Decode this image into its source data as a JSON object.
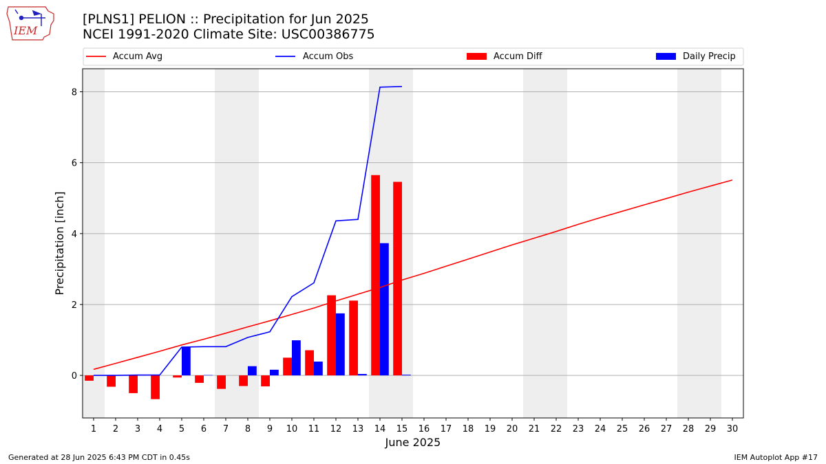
{
  "header": {
    "logo_text": "IEM",
    "title_line1": "[PLNS1] PELION :: Precipitation for Jun 2025",
    "title_line2": "NCEI 1991-2020 Climate Site: USC00386775"
  },
  "footer": {
    "left": "Generated at 28 Jun 2025 6:43 PM CDT in 0.45s",
    "right": "IEM Autoplot App #17"
  },
  "colors": {
    "accum_avg": "#ff0000",
    "accum_obs": "#0000ff",
    "accum_diff": "#ff0000",
    "daily_precip": "#0000ff",
    "weekend_shade": "#eeeeee",
    "grid": "#b0b0b0"
  },
  "chart_data": {
    "type": "bar",
    "xlabel": "June 2025",
    "ylabel": "Precipitation [inch]",
    "xlim": [
      0.5,
      30.5
    ],
    "ylim": [
      -1.2,
      8.65
    ],
    "yticks": [
      0,
      2,
      4,
      6,
      8
    ],
    "days": [
      1,
      2,
      3,
      4,
      5,
      6,
      7,
      8,
      9,
      10,
      11,
      12,
      13,
      14,
      15,
      16,
      17,
      18,
      19,
      20,
      21,
      22,
      23,
      24,
      25,
      26,
      27,
      28,
      29,
      30
    ],
    "weekend_bands": [
      [
        0.5,
        1.5
      ],
      [
        6.5,
        8.5
      ],
      [
        13.5,
        15.5
      ],
      [
        20.5,
        22.5
      ],
      [
        27.5,
        29.5
      ]
    ],
    "grid": "horizontal",
    "legend": {
      "placement": "top",
      "entries": [
        {
          "label": "Accum Avg",
          "kind": "line",
          "color": "#ff0000"
        },
        {
          "label": "Accum Obs",
          "kind": "line",
          "color": "#0000ff"
        },
        {
          "label": "Accum Diff",
          "kind": "bar",
          "color": "#ff0000"
        },
        {
          "label": "Daily Precip",
          "kind": "bar",
          "color": "#0000ff"
        }
      ]
    },
    "series": [
      {
        "name": "Accum Avg",
        "type": "line",
        "x": [
          1,
          2,
          3,
          4,
          5,
          6,
          7,
          8,
          9,
          10,
          11,
          12,
          13,
          14,
          15,
          16,
          17,
          18,
          19,
          20,
          21,
          22,
          23,
          24,
          25,
          26,
          27,
          28,
          29,
          30
        ],
        "values": [
          0.17,
          0.34,
          0.51,
          0.68,
          0.86,
          1.02,
          1.19,
          1.37,
          1.54,
          1.72,
          1.9,
          2.1,
          2.29,
          2.48,
          2.69,
          2.88,
          3.08,
          3.28,
          3.48,
          3.68,
          3.87,
          4.06,
          4.26,
          4.45,
          4.63,
          4.81,
          4.99,
          5.17,
          5.34,
          5.51
        ]
      },
      {
        "name": "Accum Obs",
        "type": "line",
        "x": [
          1,
          2,
          3,
          4,
          5,
          6,
          7,
          8,
          9,
          10,
          11,
          12,
          13,
          14,
          15
        ],
        "values": [
          0.0,
          0.0,
          0.01,
          0.01,
          0.8,
          0.81,
          0.81,
          1.07,
          1.23,
          2.22,
          2.61,
          4.36,
          4.4,
          8.13,
          8.15
        ]
      },
      {
        "name": "Accum Diff",
        "type": "bar",
        "x": [
          1,
          2,
          3,
          4,
          5,
          6,
          7,
          8,
          9,
          10,
          11,
          12,
          13,
          14,
          15
        ],
        "values": [
          -0.15,
          -0.32,
          -0.5,
          -0.67,
          -0.06,
          -0.21,
          -0.38,
          -0.3,
          -0.31,
          0.5,
          0.71,
          2.26,
          2.11,
          5.65,
          5.46
        ]
      },
      {
        "name": "Daily Precip",
        "type": "bar",
        "x": [
          1,
          2,
          3,
          4,
          5,
          6,
          7,
          8,
          9,
          10,
          11,
          12,
          13,
          14,
          15
        ],
        "values": [
          0.0,
          0.0,
          0.01,
          0.0,
          0.79,
          0.01,
          0.0,
          0.26,
          0.16,
          0.99,
          0.39,
          1.75,
          0.04,
          3.73,
          0.02
        ]
      }
    ]
  }
}
